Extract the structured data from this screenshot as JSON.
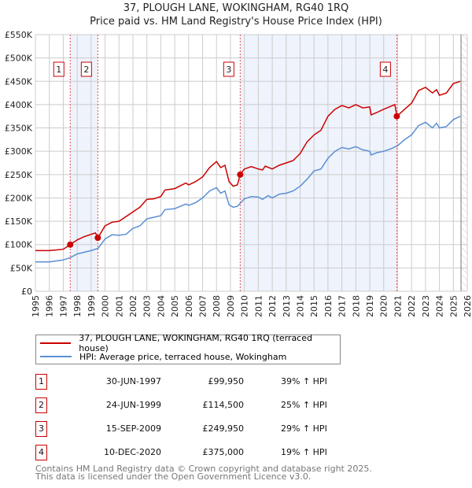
{
  "chart_data": {
    "type": "line",
    "title": "37, PLOUGH LANE, WOKINGHAM, RG40 1RQ",
    "subtitle": "Price paid vs. HM Land Registry's House Price Index (HPI)",
    "xlim": [
      1995,
      2026
    ],
    "ylim": [
      0,
      550000
    ],
    "y_ticks": [
      0,
      50000,
      100000,
      150000,
      200000,
      250000,
      300000,
      350000,
      400000,
      450000,
      500000,
      550000
    ],
    "y_tick_labels": [
      "£0",
      "£50K",
      "£100K",
      "£150K",
      "£200K",
      "£250K",
      "£300K",
      "£350K",
      "£400K",
      "£450K",
      "£500K",
      "£550K"
    ],
    "x_ticks": [
      1995,
      1996,
      1997,
      1998,
      1999,
      2000,
      2001,
      2002,
      2003,
      2004,
      2005,
      2006,
      2007,
      2008,
      2009,
      2010,
      2011,
      2012,
      2013,
      2014,
      2015,
      2016,
      2017,
      2018,
      2019,
      2020,
      2021,
      2022,
      2023,
      2024,
      2025,
      2026
    ],
    "grid": true,
    "colors": {
      "property": "#cc0000",
      "hpi": "#5b8fd4",
      "band": "#eef3fc",
      "marker_line": "#e05050"
    },
    "shaded_ranges": [
      [
        1997.5,
        1999.48
      ],
      [
        2009.7,
        2020.94
      ]
    ],
    "forecast_hatch_from": 2025.55,
    "series": [
      {
        "name": "37, PLOUGH LANE, WOKINGHAM, RG40 1RQ (terraced house)",
        "color": "#cc0000",
        "x": [
          1995,
          1996,
          1997,
          1997.5,
          1998,
          1998.5,
          1999.3,
          1999.5,
          2000,
          2000.5,
          2001,
          2001.5,
          2002,
          2002.5,
          2003,
          2003.5,
          2004,
          2004.3,
          2005,
          2005.8,
          2006,
          2006.5,
          2007,
          2007.5,
          2008,
          2008.3,
          2008.6,
          2008.9,
          2009.2,
          2009.5,
          2009.7,
          2010,
          2010.5,
          2011,
          2011.3,
          2011.5,
          2012,
          2012.5,
          2013,
          2013.5,
          2014,
          2014.5,
          2015,
          2015.5,
          2016,
          2016.5,
          2017,
          2017.5,
          2018,
          2018.5,
          2019,
          2019.1,
          2019.5,
          2020,
          2020.8,
          2020.95,
          2021.5,
          2022,
          2022.5,
          2023,
          2023.5,
          2023.8,
          2024,
          2024.5,
          2025,
          2025.5
        ],
        "values": [
          87000,
          87000,
          90000,
          100000,
          110000,
          117000,
          125000,
          115000,
          140000,
          148000,
          150000,
          160000,
          170000,
          180000,
          197000,
          198000,
          203000,
          217000,
          220000,
          232000,
          228000,
          235000,
          245000,
          265000,
          278000,
          265000,
          270000,
          235000,
          225000,
          228000,
          250000,
          262000,
          267000,
          262000,
          260000,
          268000,
          262000,
          270000,
          275000,
          280000,
          295000,
          320000,
          335000,
          345000,
          375000,
          390000,
          398000,
          393000,
          400000,
          393000,
          395000,
          378000,
          383000,
          390000,
          400000,
          375000,
          390000,
          403000,
          430000,
          437000,
          425000,
          432000,
          420000,
          425000,
          445000,
          450000
        ]
      },
      {
        "name": "HPI: Average price, terraced house, Wokingham",
        "color": "#5b8fd4",
        "x": [
          1995,
          1996,
          1997,
          1997.5,
          1998,
          1999,
          1999.5,
          2000,
          2000.5,
          2001,
          2001.5,
          2002,
          2002.5,
          2003,
          2004,
          2004.3,
          2005,
          2005.8,
          2006,
          2006.5,
          2007,
          2007.5,
          2008,
          2008.3,
          2008.6,
          2008.9,
          2009.2,
          2009.5,
          2010,
          2010.5,
          2011,
          2011.3,
          2011.7,
          2012,
          2012.5,
          2013,
          2013.5,
          2014,
          2014.5,
          2015,
          2015.5,
          2016,
          2016.5,
          2017,
          2017.5,
          2018,
          2018.5,
          2019,
          2019.1,
          2019.5,
          2020,
          2020.5,
          2021,
          2021.5,
          2022,
          2022.5,
          2023,
          2023.5,
          2023.8,
          2024,
          2024.5,
          2025,
          2025.5
        ],
        "values": [
          63000,
          63000,
          67000,
          72000,
          80000,
          87000,
          92000,
          112000,
          121000,
          120000,
          122000,
          135000,
          140000,
          155000,
          162000,
          175000,
          177000,
          187000,
          184000,
          190000,
          200000,
          215000,
          222000,
          210000,
          215000,
          185000,
          180000,
          182000,
          198000,
          203000,
          202000,
          197000,
          205000,
          200000,
          208000,
          210000,
          215000,
          225000,
          240000,
          258000,
          262000,
          285000,
          300000,
          308000,
          305000,
          310000,
          303000,
          300000,
          292000,
          297000,
          300000,
          305000,
          312000,
          325000,
          335000,
          355000,
          362000,
          350000,
          360000,
          350000,
          353000,
          368000,
          375000
        ]
      }
    ],
    "transactions": [
      {
        "num": "1",
        "x": 1997.5,
        "price": 99950,
        "date": "30-JUN-1997",
        "price_label": "£99,950",
        "hpi": "39% ↑ HPI"
      },
      {
        "num": "2",
        "x": 1999.48,
        "price": 114500,
        "date": "24-JUN-1999",
        "price_label": "£114,500",
        "hpi": "25% ↑ HPI"
      },
      {
        "num": "3",
        "x": 2009.7,
        "price": 249950,
        "date": "15-SEP-2009",
        "price_label": "£249,950",
        "hpi": "29% ↑ HPI"
      },
      {
        "num": "4",
        "x": 2020.94,
        "price": 375000,
        "date": "10-DEC-2020",
        "price_label": "£375,000",
        "hpi": "19% ↑ HPI"
      }
    ]
  },
  "legend": {
    "property": "37, PLOUGH LANE, WOKINGHAM, RG40 1RQ (terraced house)",
    "hpi": "HPI: Average price, terraced house, Wokingham"
  },
  "footer": {
    "line1": "Contains HM Land Registry data © Crown copyright and database right 2025.",
    "line2": "This data is licensed under the Open Government Licence v3.0."
  }
}
